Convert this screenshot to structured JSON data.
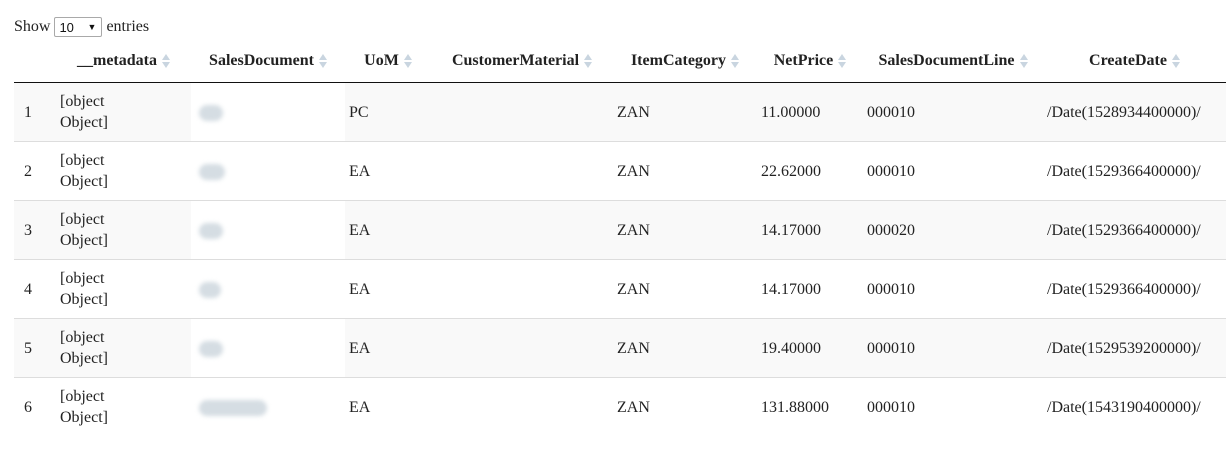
{
  "length_control": {
    "prefix": "Show",
    "selected": "10",
    "suffix": "entries"
  },
  "table": {
    "columns": [
      {
        "label": "",
        "sortable": false
      },
      {
        "label": "__metadata",
        "sortable": true
      },
      {
        "label": "SalesDocument",
        "sortable": true
      },
      {
        "label": "UoM",
        "sortable": true
      },
      {
        "label": "CustomerMaterial",
        "sortable": true
      },
      {
        "label": "ItemCategory",
        "sortable": true
      },
      {
        "label": "NetPrice",
        "sortable": true
      },
      {
        "label": "SalesDocumentLine",
        "sortable": true
      },
      {
        "label": "CreateDate",
        "sortable": true
      }
    ],
    "rows": [
      {
        "index": "1",
        "metadata_line1": "[object",
        "metadata_line2": "Object]",
        "uom": "PC",
        "customer_material": "",
        "item_category": "ZAN",
        "net_price": "11.00000",
        "sales_document_line": "000010",
        "create_date": "/Date(1528934400000)/"
      },
      {
        "index": "2",
        "metadata_line1": "[object",
        "metadata_line2": "Object]",
        "uom": "EA",
        "customer_material": "",
        "item_category": "ZAN",
        "net_price": "22.62000",
        "sales_document_line": "000010",
        "create_date": "/Date(1529366400000)/"
      },
      {
        "index": "3",
        "metadata_line1": "[object",
        "metadata_line2": "Object]",
        "uom": "EA",
        "customer_material": "",
        "item_category": "ZAN",
        "net_price": "14.17000",
        "sales_document_line": "000020",
        "create_date": "/Date(1529366400000)/"
      },
      {
        "index": "4",
        "metadata_line1": "[object",
        "metadata_line2": "Object]",
        "uom": "EA",
        "customer_material": "",
        "item_category": "ZAN",
        "net_price": "14.17000",
        "sales_document_line": "000010",
        "create_date": "/Date(1529366400000)/"
      },
      {
        "index": "5",
        "metadata_line1": "[object",
        "metadata_line2": "Object]",
        "uom": "EA",
        "customer_material": "",
        "item_category": "ZAN",
        "net_price": "19.40000",
        "sales_document_line": "000010",
        "create_date": "/Date(1529539200000)/"
      },
      {
        "index": "6",
        "metadata_line1": "[object",
        "metadata_line2": "Object]",
        "uom": "EA",
        "customer_material": "",
        "item_category": "ZAN",
        "net_price": "131.88000",
        "sales_document_line": "000010",
        "create_date": "/Date(1543190400000)/"
      }
    ]
  },
  "colors": {
    "sort_icon": "#c9d5e0",
    "row_striped": "#f9f9f9",
    "header_border": "#111111",
    "redaction": "#d5dde3"
  }
}
